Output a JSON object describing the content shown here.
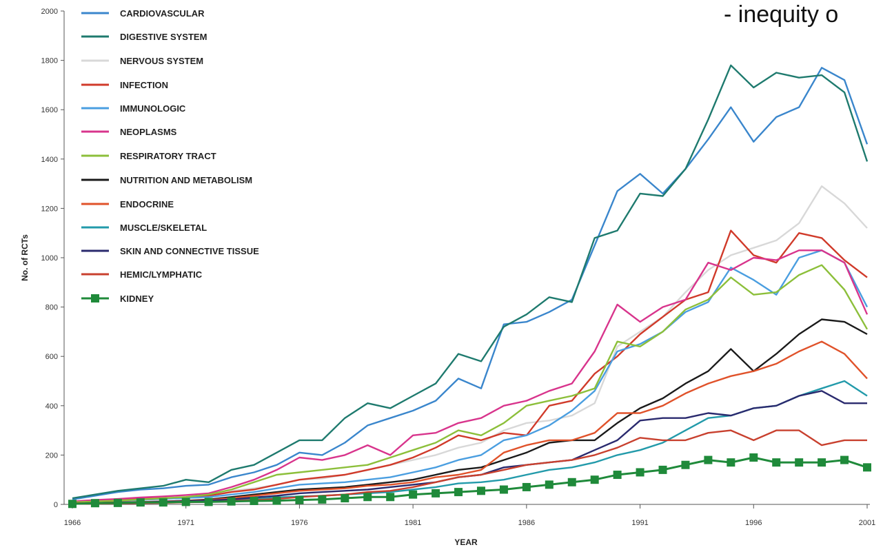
{
  "headline": "- inequity o",
  "chart_data": {
    "type": "line",
    "title": "",
    "xlabel": "YEAR",
    "ylabel": "No. of RCTs",
    "xlim": [
      1966,
      2001
    ],
    "ylim": [
      0,
      2000
    ],
    "x": [
      1966,
      1967,
      1968,
      1969,
      1970,
      1971,
      1972,
      1973,
      1974,
      1975,
      1976,
      1977,
      1978,
      1979,
      1980,
      1981,
      1982,
      1983,
      1984,
      1985,
      1986,
      1987,
      1988,
      1989,
      1990,
      1991,
      1992,
      1993,
      1994,
      1995,
      1996,
      1997,
      1998,
      1999,
      2000,
      2001
    ],
    "x_ticks": [
      "1966",
      "1971",
      "1976",
      "1981",
      "1986",
      "1991",
      "1996",
      "2001"
    ],
    "y_ticks": [
      "0",
      "200",
      "400",
      "600",
      "800",
      "1000",
      "1200",
      "1400",
      "1600",
      "1800",
      "2000"
    ],
    "legend_position": "top-left",
    "series": [
      {
        "name": "CARDIOVASCULAR",
        "color": "#3a86cc",
        "values": [
          20,
          35,
          50,
          60,
          65,
          75,
          80,
          110,
          130,
          160,
          210,
          200,
          250,
          320,
          350,
          380,
          420,
          510,
          470,
          730,
          740,
          780,
          830,
          1050,
          1270,
          1340,
          1260,
          1360,
          1480,
          1610,
          1470,
          1570,
          1610,
          1770,
          1720,
          1460
        ]
      },
      {
        "name": "DIGESTIVE SYSTEM",
        "color": "#1e7a6e",
        "values": [
          25,
          40,
          55,
          65,
          75,
          100,
          90,
          140,
          160,
          210,
          260,
          260,
          350,
          410,
          390,
          440,
          490,
          610,
          580,
          720,
          770,
          840,
          820,
          1080,
          1110,
          1260,
          1250,
          1360,
          1560,
          1780,
          1690,
          1750,
          1730,
          1740,
          1670,
          1390
        ]
      },
      {
        "name": "NERVOUS SYSTEM",
        "color": "#d8d8d8",
        "values": [
          10,
          15,
          20,
          25,
          30,
          35,
          40,
          55,
          65,
          80,
          100,
          105,
          120,
          140,
          160,
          180,
          200,
          230,
          250,
          300,
          330,
          340,
          360,
          410,
          640,
          700,
          760,
          860,
          950,
          1010,
          1040,
          1070,
          1140,
          1290,
          1220,
          1120
        ]
      },
      {
        "name": "INFECTION",
        "color": "#d03a2a",
        "values": [
          8,
          12,
          18,
          22,
          25,
          28,
          35,
          50,
          60,
          80,
          100,
          110,
          120,
          140,
          160,
          190,
          230,
          280,
          260,
          290,
          280,
          400,
          420,
          530,
          600,
          690,
          760,
          830,
          860,
          1110,
          1010,
          980,
          1100,
          1080,
          990,
          920
        ]
      },
      {
        "name": "IMMUNOLOGIC",
        "color": "#4a9ee0",
        "values": [
          6,
          10,
          14,
          18,
          22,
          26,
          30,
          40,
          50,
          65,
          80,
          85,
          90,
          100,
          110,
          130,
          150,
          180,
          200,
          260,
          280,
          320,
          380,
          460,
          620,
          650,
          700,
          780,
          820,
          960,
          910,
          850,
          1000,
          1030,
          980,
          800
        ]
      },
      {
        "name": "NEOPLASMS",
        "color": "#d8348c",
        "values": [
          12,
          18,
          22,
          28,
          32,
          38,
          45,
          70,
          100,
          140,
          190,
          180,
          200,
          240,
          200,
          280,
          290,
          330,
          350,
          400,
          420,
          460,
          490,
          620,
          810,
          740,
          800,
          830,
          980,
          950,
          1000,
          990,
          1030,
          1030,
          980,
          770
        ]
      },
      {
        "name": "RESPIRATORY TRACT",
        "color": "#8cbf3a",
        "values": [
          8,
          12,
          15,
          20,
          25,
          30,
          40,
          60,
          90,
          120,
          130,
          140,
          150,
          160,
          190,
          220,
          250,
          300,
          280,
          330,
          400,
          420,
          440,
          470,
          660,
          640,
          700,
          790,
          830,
          920,
          850,
          860,
          930,
          970,
          870,
          710
        ]
      },
      {
        "name": "NUTRITION AND METABOLISM",
        "color": "#1a1a1a",
        "values": [
          4,
          6,
          8,
          10,
          12,
          15,
          20,
          30,
          40,
          50,
          60,
          65,
          70,
          80,
          90,
          100,
          120,
          140,
          150,
          180,
          210,
          250,
          260,
          260,
          330,
          390,
          430,
          490,
          540,
          630,
          540,
          610,
          690,
          750,
          740,
          690
        ]
      },
      {
        "name": "ENDOCRINE",
        "color": "#e0522a",
        "values": [
          4,
          6,
          8,
          10,
          12,
          14,
          18,
          25,
          35,
          45,
          55,
          60,
          65,
          75,
          80,
          90,
          110,
          120,
          140,
          210,
          240,
          260,
          260,
          290,
          370,
          370,
          400,
          450,
          490,
          520,
          540,
          570,
          620,
          660,
          610,
          510
        ]
      },
      {
        "name": "MUSCLE/SKELETAL",
        "color": "#229aaa",
        "values": [
          2,
          4,
          6,
          8,
          10,
          12,
          15,
          18,
          22,
          28,
          32,
          35,
          40,
          45,
          50,
          60,
          70,
          85,
          90,
          100,
          120,
          140,
          150,
          170,
          200,
          220,
          250,
          300,
          350,
          360,
          390,
          400,
          440,
          470,
          500,
          440
        ]
      },
      {
        "name": "SKIN AND CONNECTIVE TISSUE",
        "color": "#2a2a6e",
        "values": [
          3,
          5,
          7,
          9,
          11,
          13,
          16,
          20,
          28,
          35,
          45,
          50,
          55,
          60,
          70,
          80,
          90,
          110,
          120,
          150,
          160,
          170,
          180,
          220,
          260,
          340,
          350,
          350,
          370,
          360,
          390,
          400,
          440,
          460,
          410,
          410
        ]
      },
      {
        "name": "HEMIC/LYMPHATIC",
        "color": "#c8402e",
        "values": [
          2,
          3,
          4,
          5,
          6,
          8,
          10,
          14,
          18,
          22,
          30,
          35,
          40,
          50,
          55,
          70,
          90,
          110,
          120,
          140,
          160,
          170,
          180,
          200,
          230,
          270,
          260,
          260,
          290,
          300,
          260,
          300,
          300,
          240,
          260,
          260
        ]
      },
      {
        "name": "KIDNEY",
        "color": "#1f8a3a",
        "marker": "square",
        "values": [
          2,
          5,
          6,
          8,
          8,
          10,
          10,
          12,
          14,
          15,
          18,
          20,
          25,
          30,
          30,
          40,
          45,
          50,
          55,
          60,
          70,
          80,
          90,
          100,
          120,
          130,
          140,
          160,
          180,
          170,
          190,
          170,
          170,
          170,
          180,
          150
        ]
      }
    ]
  }
}
